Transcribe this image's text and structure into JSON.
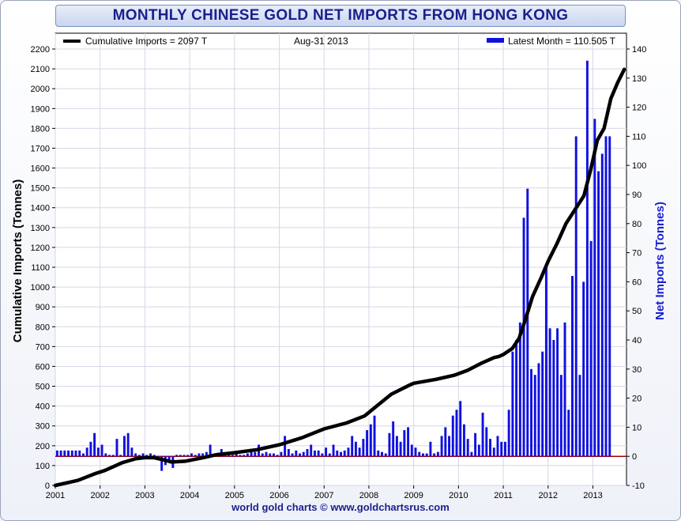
{
  "title": "MONTHLY CHINESE GOLD NET IMPORTS FROM HONG KONG",
  "footer": "world gold charts © www.goldchartsrus.com",
  "colors": {
    "bars": "#1010e0",
    "line": "#000000",
    "zero_line": "#a00000",
    "title": "#1a1f8c",
    "grid": "#d4d8e6"
  },
  "chart_data": {
    "type": "bar",
    "title": "MONTHLY CHINESE GOLD NET IMPORTS FROM HONG KONG",
    "ylabel_left": "Cumulative Imports (Tonnes)",
    "ylabel_right": "Net Imports (Tonnes)",
    "ylim_left": [
      0,
      2200
    ],
    "ylim_right": [
      -10,
      140
    ],
    "xlim": [
      2001,
      2013.75
    ],
    "yticks_left": [
      0,
      100,
      200,
      300,
      400,
      500,
      600,
      700,
      800,
      900,
      1000,
      1100,
      1200,
      1300,
      1400,
      1500,
      1600,
      1700,
      1800,
      1900,
      2000,
      2100,
      2200
    ],
    "yticks_right": [
      -10,
      0,
      10,
      20,
      30,
      40,
      50,
      60,
      70,
      80,
      90,
      100,
      110,
      120,
      130,
      140
    ],
    "xticks": [
      "2001",
      "2002",
      "2003",
      "2004",
      "2005",
      "2006",
      "2007",
      "2008",
      "2009",
      "2010",
      "2011",
      "2012",
      "2013"
    ],
    "legend": {
      "cumulative": "Cumulative Imports = 2097 T",
      "date": "Aug-31  2013",
      "latest": "Latest Month  = 110.505 T"
    },
    "bar_start": 2001.0,
    "bar_step_months": 1,
    "monthly_values": [
      2,
      2,
      2,
      2,
      2,
      2,
      2,
      1,
      3,
      5,
      8,
      3,
      4,
      1,
      0.5,
      0.5,
      6,
      0.5,
      7,
      8,
      3,
      1,
      0.5,
      1,
      0.5,
      1,
      0.5,
      -1,
      -5,
      -3,
      -2,
      -4,
      0.5,
      0.5,
      0.5,
      0.5,
      1,
      0.5,
      1,
      1,
      1.5,
      4,
      0.5,
      1,
      2.5,
      1,
      0.5,
      0.5,
      1,
      0.5,
      0.5,
      1,
      2,
      1.5,
      4,
      1,
      1.5,
      1,
      1,
      0.5,
      1.5,
      7,
      2.5,
      1,
      2,
      1,
      1.5,
      2.5,
      4,
      2,
      2,
      1,
      3,
      1,
      4,
      2,
      1.5,
      2,
      3,
      7,
      5,
      3,
      6,
      9,
      11,
      14,
      2,
      1.5,
      1,
      8,
      12,
      7,
      5,
      9,
      10,
      4,
      3,
      1.5,
      1,
      1,
      5,
      1,
      1.5,
      7,
      10,
      7,
      14,
      16,
      19,
      11,
      6,
      1.5,
      8,
      4,
      15,
      10,
      6,
      3,
      7,
      5,
      5,
      16,
      36,
      40,
      46,
      82,
      92,
      30,
      28,
      32,
      36,
      66,
      44,
      40,
      44,
      28,
      46,
      16,
      62,
      110,
      28,
      60,
      136,
      74,
      116,
      98,
      104,
      110,
      110
    ],
    "cumulative_line": {
      "x": [
        2001.0,
        2001.5,
        2001.9,
        2002.1,
        2002.3,
        2002.5,
        2002.8,
        2003.0,
        2003.2,
        2003.4,
        2003.6,
        2003.9,
        2004.3,
        2004.6,
        2005.0,
        2005.5,
        2005.8,
        2006.0,
        2006.5,
        2007.0,
        2007.5,
        2007.9,
        2008.2,
        2008.5,
        2008.9,
        2009.0,
        2009.5,
        2009.9,
        2010.2,
        2010.5,
        2010.8,
        2010.9,
        2011.0,
        2011.2,
        2011.35,
        2011.5,
        2011.65,
        2011.85,
        2012.0,
        2012.2,
        2012.4,
        2012.6,
        2012.8,
        2012.95,
        2013.1,
        2013.25,
        2013.4,
        2013.55,
        2013.7
      ],
      "y": [
        0,
        25,
        60,
        75,
        95,
        115,
        135,
        140,
        140,
        130,
        118,
        122,
        140,
        155,
        165,
        180,
        195,
        205,
        240,
        285,
        315,
        350,
        405,
        460,
        505,
        515,
        535,
        555,
        580,
        615,
        645,
        650,
        660,
        690,
        740,
        840,
        950,
        1050,
        1130,
        1220,
        1320,
        1390,
        1460,
        1590,
        1740,
        1800,
        1950,
        2030,
        2097
      ]
    }
  }
}
